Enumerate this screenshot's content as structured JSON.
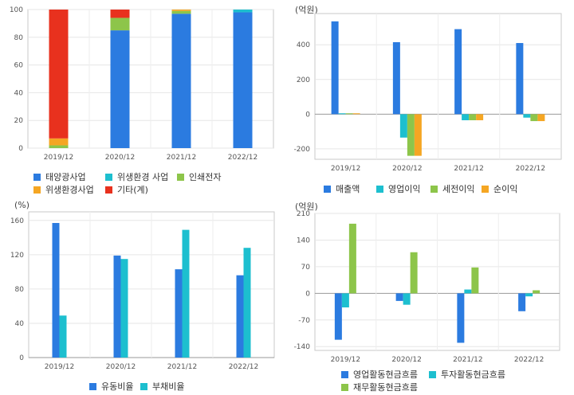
{
  "charts": [
    {
      "type": "bar",
      "stacked": true,
      "unit_label": "",
      "categories": [
        "2019/12",
        "2020/12",
        "2021/12",
        "2022/12"
      ],
      "ylim": [
        0,
        100
      ],
      "yticks": [
        0,
        20,
        40,
        60,
        80,
        100
      ],
      "grid": true,
      "legend_position": "bottom-left",
      "series": [
        {
          "name": "태양광사업",
          "color": "#2b7be0",
          "values": [
            0,
            85,
            97,
            98
          ]
        },
        {
          "name": "위생환경 사업",
          "color": "#1dbfcf",
          "values": [
            0,
            0,
            0,
            2
          ]
        },
        {
          "name": "인쇄전자",
          "color": "#8dc54a",
          "values": [
            2,
            9,
            2,
            0
          ]
        },
        {
          "name": "위생환경사업",
          "color": "#f5a623",
          "values": [
            5,
            0,
            1,
            0
          ]
        },
        {
          "name": "기타(계)",
          "color": "#e8311e",
          "values": [
            93,
            6,
            0,
            0
          ]
        }
      ]
    },
    {
      "type": "bar",
      "stacked": false,
      "unit_label": "(억원)",
      "categories": [
        "2019/12",
        "2020/12",
        "2021/12",
        "2022/12"
      ],
      "ylim": [
        -260,
        580
      ],
      "yticks": [
        -200,
        0,
        200,
        400
      ],
      "grid": true,
      "legend_position": "bottom",
      "series": [
        {
          "name": "매출액",
          "color": "#2b7be0",
          "values": [
            535,
            415,
            490,
            410
          ]
        },
        {
          "name": "영업이익",
          "color": "#1dbfcf",
          "values": [
            5,
            -135,
            -35,
            -20
          ]
        },
        {
          "name": "세전이익",
          "color": "#8dc54a",
          "values": [
            5,
            -240,
            -35,
            -40
          ]
        },
        {
          "name": "순이익",
          "color": "#f5a623",
          "values": [
            5,
            -240,
            -35,
            -40
          ]
        }
      ]
    },
    {
      "type": "bar",
      "stacked": false,
      "unit_label": "(%)",
      "categories": [
        "2019/12",
        "2020/12",
        "2021/12",
        "2022/12"
      ],
      "ylim": [
        0,
        170
      ],
      "yticks": [
        0,
        40,
        80,
        120,
        160
      ],
      "grid": true,
      "legend_position": "bottom",
      "series": [
        {
          "name": "유동비율",
          "color": "#2b7be0",
          "values": [
            157,
            119,
            103,
            96
          ]
        },
        {
          "name": "부채비율",
          "color": "#1dbfcf",
          "values": [
            49,
            115,
            149,
            128
          ]
        }
      ]
    },
    {
      "type": "bar",
      "stacked": false,
      "unit_label": "(억원)",
      "categories": [
        "2019/12",
        "2020/12",
        "2021/12",
        "2022/12"
      ],
      "ylim": [
        -150,
        210
      ],
      "yticks": [
        -140,
        -70,
        0,
        70,
        140,
        210
      ],
      "grid": true,
      "legend_position": "bottom",
      "series": [
        {
          "name": "영업활동현금흐름",
          "color": "#2b7be0",
          "values": [
            -122,
            -20,
            -130,
            -47
          ]
        },
        {
          "name": "투자활동현금흐름",
          "color": "#1dbfcf",
          "values": [
            -37,
            -30,
            10,
            -8
          ]
        },
        {
          "name": "재무활동현금흐름",
          "color": "#8dc54a",
          "values": [
            183,
            108,
            68,
            8
          ]
        }
      ]
    }
  ]
}
